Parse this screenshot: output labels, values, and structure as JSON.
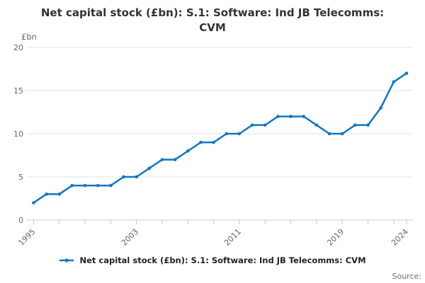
{
  "header": {
    "title": "Net capital stock (£bn): S.1: Software: Ind JB Telecomms: CVM",
    "title_line1": "Net capital stock (£bn): S.1: Software: Ind JB Telecomms:",
    "title_line2": "CVM"
  },
  "axes": {
    "y_unit_label": "£bn",
    "y_ticks": [
      0,
      5,
      10,
      15,
      20
    ],
    "x_tick_years": [
      1995,
      1997,
      1999,
      2001,
      2003,
      2005,
      2007,
      2009,
      2011,
      2013,
      2015,
      2017,
      2019,
      2021,
      2023,
      2024
    ],
    "x_labeled_years": [
      1995,
      2003,
      2011,
      2019,
      2024
    ]
  },
  "legend": {
    "label": "Net capital stock (£bn): S.1: Software: Ind JB Telecomms: CVM"
  },
  "footer": {
    "source_label": "Source:"
  },
  "colors": {
    "line": "#1277bd",
    "gridline": "#e3e3e3",
    "axis": "#c6d0e0",
    "tick": "#b9c7dd",
    "axis_text": "#666666",
    "title_text": "#333333",
    "legend_text": "#222222",
    "source_text": "#6e6e6e"
  },
  "chart_data": {
    "type": "line",
    "title": "Net capital stock (£bn): S.1: Software: Ind JB Telecomms: CVM",
    "xlabel": "",
    "ylabel": "£bn",
    "ylim": [
      0,
      20
    ],
    "grid": true,
    "legend_position": "bottom",
    "x": [
      1995,
      1996,
      1997,
      1998,
      1999,
      2000,
      2001,
      2002,
      2003,
      2004,
      2005,
      2006,
      2007,
      2008,
      2009,
      2010,
      2011,
      2012,
      2013,
      2014,
      2015,
      2016,
      2017,
      2018,
      2019,
      2020,
      2021,
      2022,
      2023,
      2024
    ],
    "series": [
      {
        "name": "Net capital stock (£bn): S.1: Software: Ind JB Telecomms: CVM",
        "values": [
          2,
          3,
          3,
          4,
          4,
          4,
          4,
          5,
          5,
          6,
          7,
          7,
          8,
          9,
          9,
          10,
          10,
          11,
          11,
          12,
          12,
          12,
          11,
          10,
          10,
          11,
          11,
          13,
          16,
          17
        ]
      }
    ]
  }
}
